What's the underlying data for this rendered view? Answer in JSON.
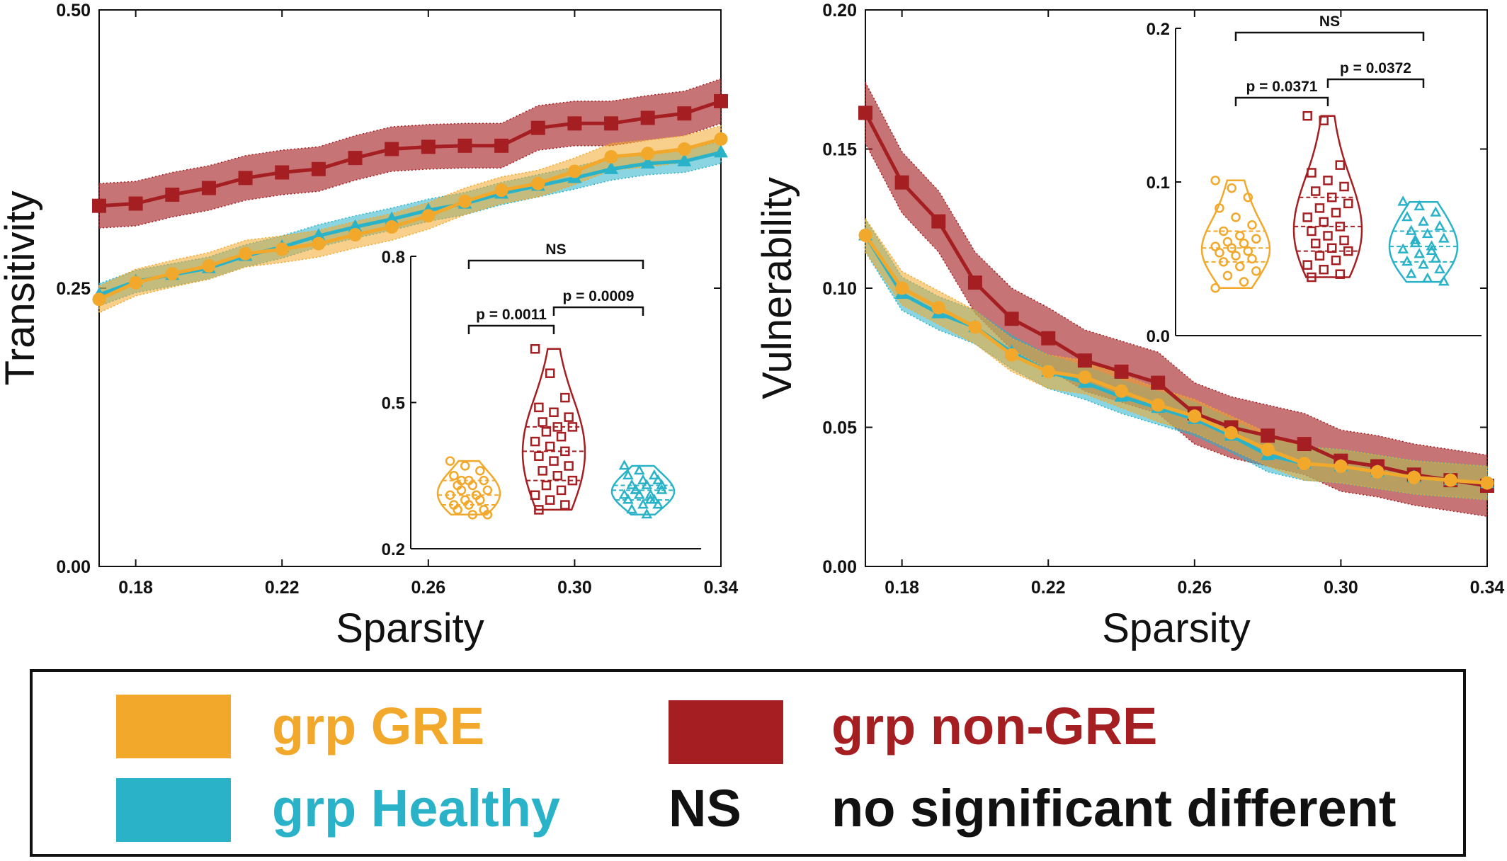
{
  "colors": {
    "gre": "#F2A82B",
    "nongre": "#A51F22",
    "healthy": "#2AB3C8",
    "axis": "#111111"
  },
  "legend": {
    "gre": "grp GRE",
    "nongre": "grp non-GRE",
    "healthy": "grp Healthy",
    "ns_key": "NS",
    "ns_text": "no significant different"
  },
  "chart_data": [
    {
      "type": "line",
      "panel": "left",
      "xlabel": "Sparsity",
      "ylabel": "Transitivity",
      "xlim": [
        0.17,
        0.34
      ],
      "ylim": [
        0.0,
        0.5
      ],
      "xticks": [
        "0.18",
        "0.22",
        "0.26",
        "0.30",
        "0.34"
      ],
      "yticks": [
        "0.00",
        "0.25",
        "0.50"
      ],
      "x": [
        0.17,
        0.18,
        0.19,
        0.2,
        0.21,
        0.22,
        0.23,
        0.24,
        0.25,
        0.26,
        0.27,
        0.28,
        0.29,
        0.3,
        0.31,
        0.32,
        0.33,
        0.34
      ],
      "series": [
        {
          "name": "grp non-GRE",
          "key": "nongre",
          "marker": "square",
          "values": [
            0.324,
            0.326,
            0.334,
            0.34,
            0.349,
            0.354,
            0.357,
            0.367,
            0.375,
            0.377,
            0.378,
            0.378,
            0.394,
            0.398,
            0.398,
            0.403,
            0.407,
            0.418
          ],
          "band": 0.02
        },
        {
          "name": "grp Healthy",
          "key": "healthy",
          "marker": "triangle",
          "values": [
            0.244,
            0.256,
            0.262,
            0.268,
            0.279,
            0.287,
            0.297,
            0.305,
            0.312,
            0.32,
            0.326,
            0.335,
            0.342,
            0.349,
            0.357,
            0.362,
            0.364,
            0.372
          ],
          "band": 0.01
        },
        {
          "name": "grp GRE",
          "key": "gre",
          "marker": "circle",
          "values": [
            0.24,
            0.255,
            0.263,
            0.27,
            0.281,
            0.285,
            0.29,
            0.298,
            0.305,
            0.315,
            0.328,
            0.338,
            0.344,
            0.355,
            0.368,
            0.371,
            0.375,
            0.384
          ],
          "band": 0.012
        }
      ],
      "inset": {
        "type": "violin",
        "ylim": [
          0.2,
          0.8
        ],
        "yticks": [
          "0.2",
          "0.5",
          "0.8"
        ],
        "groups": [
          {
            "key": "gre",
            "marker": "circle",
            "points": [
              0.38,
              0.37,
              0.36,
              0.35,
              0.34,
              0.34,
              0.33,
              0.33,
              0.32,
              0.32,
              0.31,
              0.31,
              0.3,
              0.3,
              0.29,
              0.29,
              0.28,
              0.28,
              0.27,
              0.27,
              0.34,
              0.31
            ]
          },
          {
            "key": "nongre",
            "marker": "square",
            "points": [
              0.61,
              0.56,
              0.51,
              0.49,
              0.48,
              0.47,
              0.46,
              0.45,
              0.45,
              0.44,
              0.43,
              0.42,
              0.41,
              0.4,
              0.39,
              0.38,
              0.37,
              0.36,
              0.35,
              0.34,
              0.33,
              0.32,
              0.31,
              0.3,
              0.29,
              0.28
            ]
          },
          {
            "key": "healthy",
            "marker": "triangle",
            "points": [
              0.37,
              0.36,
              0.35,
              0.35,
              0.34,
              0.34,
              0.33,
              0.33,
              0.32,
              0.32,
              0.31,
              0.31,
              0.31,
              0.3,
              0.3,
              0.29,
              0.29,
              0.28,
              0.27,
              0.33,
              0.32,
              0.3
            ]
          }
        ],
        "comparisons": [
          {
            "from": 0,
            "to": 1,
            "label": "p = 0.0011",
            "level": 1
          },
          {
            "from": 1,
            "to": 2,
            "label": "p = 0.0009",
            "level": 2
          },
          {
            "from": 0,
            "to": 2,
            "label": "NS",
            "level": 3
          }
        ]
      }
    },
    {
      "type": "line",
      "panel": "right",
      "xlabel": "Sparsity",
      "ylabel": "Vulnerability",
      "xlim": [
        0.17,
        0.34
      ],
      "ylim": [
        0.0,
        0.2
      ],
      "xticks": [
        "0.18",
        "0.22",
        "0.26",
        "0.30",
        "0.34"
      ],
      "yticks": [
        "0.00",
        "0.05",
        "0.10",
        "0.15",
        "0.20"
      ],
      "x": [
        0.17,
        0.18,
        0.19,
        0.2,
        0.21,
        0.22,
        0.23,
        0.24,
        0.25,
        0.26,
        0.27,
        0.28,
        0.29,
        0.3,
        0.31,
        0.32,
        0.33,
        0.34
      ],
      "series": [
        {
          "name": "grp non-GRE",
          "key": "nongre",
          "marker": "square",
          "values": [
            0.163,
            0.138,
            0.124,
            0.102,
            0.089,
            0.082,
            0.074,
            0.07,
            0.066,
            0.055,
            0.05,
            0.047,
            0.044,
            0.038,
            0.036,
            0.033,
            0.031,
            0.029
          ],
          "band": 0.011
        },
        {
          "name": "grp Healthy",
          "key": "healthy",
          "marker": "triangle",
          "values": [
            0.119,
            0.098,
            0.091,
            0.086,
            0.077,
            0.07,
            0.066,
            0.061,
            0.057,
            0.053,
            0.047,
            0.04,
            0.037,
            0.036,
            0.034,
            0.032,
            0.031,
            0.03
          ],
          "band": 0.006
        },
        {
          "name": "grp GRE",
          "key": "gre",
          "marker": "circle",
          "values": [
            0.119,
            0.1,
            0.093,
            0.086,
            0.076,
            0.07,
            0.068,
            0.063,
            0.058,
            0.054,
            0.048,
            0.042,
            0.037,
            0.036,
            0.034,
            0.032,
            0.031,
            0.03
          ],
          "band": 0.006
        }
      ],
      "inset": {
        "type": "violin",
        "ylim": [
          0.0,
          0.2
        ],
        "yticks": [
          "0.0",
          "0.1",
          "0.2"
        ],
        "groups": [
          {
            "key": "gre",
            "marker": "circle",
            "points": [
              0.101,
              0.096,
              0.09,
              0.083,
              0.077,
              0.072,
              0.068,
              0.065,
              0.063,
              0.061,
              0.06,
              0.058,
              0.057,
              0.055,
              0.054,
              0.052,
              0.05,
              0.048,
              0.045,
              0.042,
              0.039,
              0.035,
              0.031,
              0.057
            ]
          },
          {
            "key": "nongre",
            "marker": "square",
            "points": [
              0.143,
              0.14,
              0.111,
              0.106,
              0.101,
              0.097,
              0.094,
              0.09,
              0.086,
              0.083,
              0.08,
              0.077,
              0.074,
              0.071,
              0.068,
              0.065,
              0.062,
              0.06,
              0.057,
              0.055,
              0.052,
              0.049,
              0.046,
              0.043,
              0.04,
              0.038
            ]
          },
          {
            "key": "healthy",
            "marker": "triangle",
            "points": [
              0.087,
              0.084,
              0.08,
              0.077,
              0.074,
              0.071,
              0.068,
              0.066,
              0.063,
              0.06,
              0.058,
              0.056,
              0.053,
              0.05,
              0.048,
              0.046,
              0.043,
              0.04,
              0.037,
              0.035,
              0.062,
              0.055
            ]
          }
        ],
        "comparisons": [
          {
            "from": 0,
            "to": 1,
            "label": "p = 0.0371",
            "level": 1
          },
          {
            "from": 1,
            "to": 2,
            "label": "p = 0.0372",
            "level": 2
          },
          {
            "from": 0,
            "to": 2,
            "label": "NS",
            "level": 3
          }
        ]
      }
    }
  ]
}
